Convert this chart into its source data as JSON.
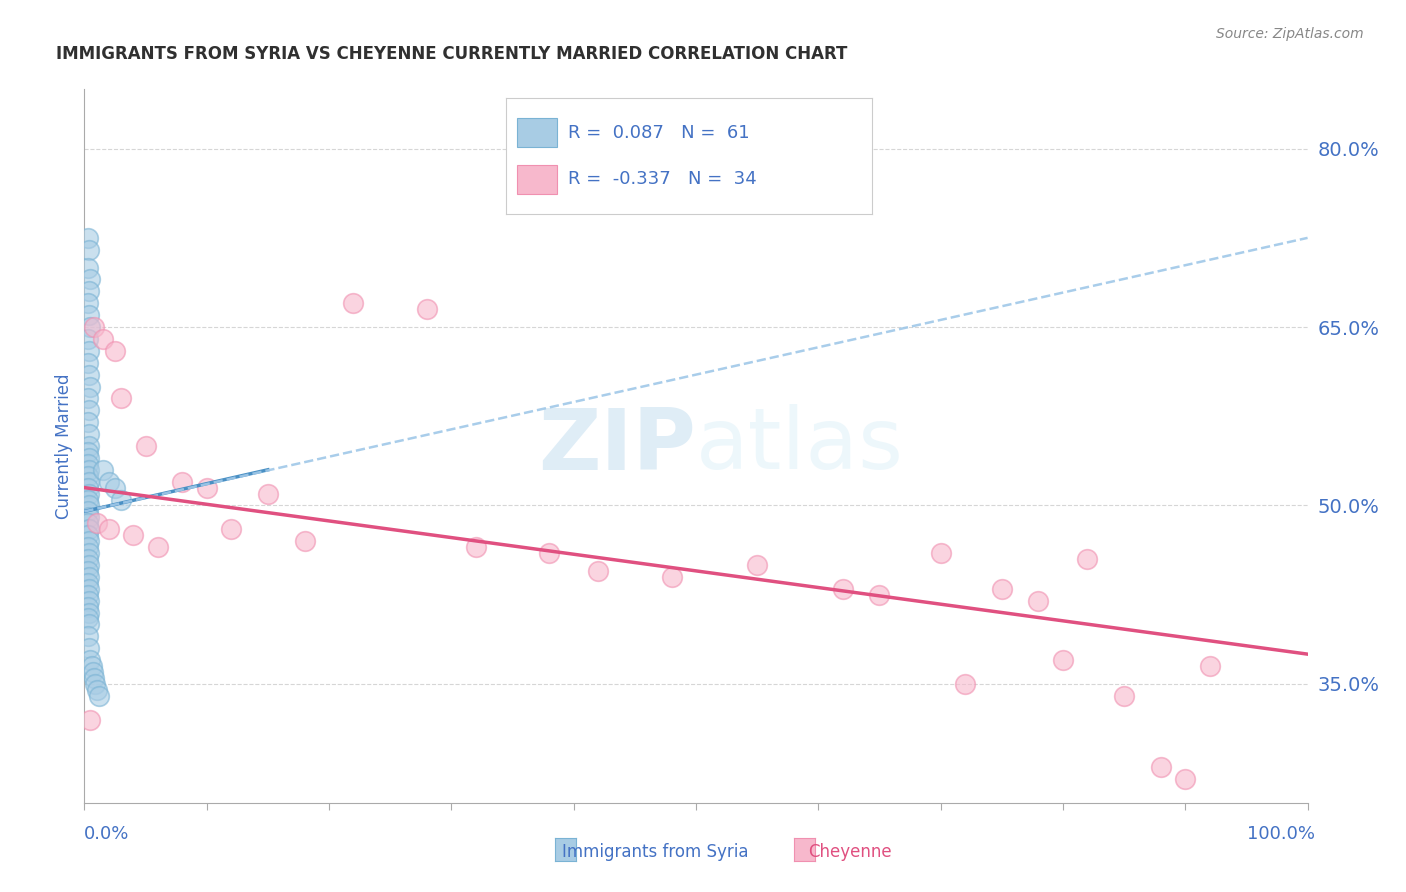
{
  "title": "IMMIGRANTS FROM SYRIA VS CHEYENNE CURRENTLY MARRIED CORRELATION CHART",
  "source": "Source: ZipAtlas.com",
  "xlabel_blue": "Immigrants from Syria",
  "xlabel_pink": "Cheyenne",
  "ylabel": "Currently Married",
  "xlim": [
    0.0,
    100.0
  ],
  "ylim": [
    25.0,
    85.0
  ],
  "yticks": [
    35.0,
    50.0,
    65.0,
    80.0
  ],
  "xticks_major": [
    0,
    10,
    20,
    30,
    40,
    50,
    60,
    70,
    80,
    90,
    100
  ],
  "legend_blue_r": "0.087",
  "legend_blue_n": "61",
  "legend_pink_r": "-0.337",
  "legend_pink_n": "34",
  "blue_color": "#a8cce4",
  "pink_color": "#f7b8cc",
  "blue_edge_color": "#7ab3d4",
  "pink_edge_color": "#f090b0",
  "blue_solid_color": "#4a90c4",
  "pink_solid_color": "#e05080",
  "blue_dashed_color": "#a0c8e8",
  "axis_label_color": "#4472c4",
  "grid_color": "#cccccc",
  "title_color": "#303030",
  "watermark_color": "#d8eef8",
  "blue_scatter_x": [
    0.3,
    0.4,
    0.3,
    0.5,
    0.4,
    0.3,
    0.4,
    0.5,
    0.3,
    0.4,
    0.3,
    0.4,
    0.5,
    0.3,
    0.4,
    0.3,
    0.4,
    0.4,
    0.3,
    0.4,
    0.3,
    0.4,
    0.3,
    0.4,
    0.3,
    0.4,
    0.3,
    0.4,
    0.3,
    0.4,
    0.3,
    0.4,
    0.3,
    0.4,
    0.3,
    0.4,
    0.3,
    0.4,
    0.3,
    0.4,
    0.3,
    0.4,
    0.3,
    0.4,
    0.3,
    0.4,
    0.3,
    0.4,
    0.3,
    0.4,
    1.5,
    2.0,
    2.5,
    3.0,
    0.5,
    0.6,
    0.7,
    0.8,
    0.9,
    1.0,
    1.2
  ],
  "blue_scatter_y": [
    72.5,
    71.5,
    70.0,
    69.0,
    68.0,
    67.0,
    66.0,
    65.0,
    64.0,
    63.0,
    62.0,
    61.0,
    60.0,
    59.0,
    58.0,
    57.0,
    56.0,
    55.0,
    54.5,
    54.0,
    53.5,
    53.0,
    52.5,
    52.0,
    51.5,
    51.0,
    50.5,
    50.0,
    49.5,
    49.0,
    48.5,
    48.0,
    47.5,
    47.0,
    46.5,
    46.0,
    45.5,
    45.0,
    44.5,
    44.0,
    43.5,
    43.0,
    42.5,
    42.0,
    41.5,
    41.0,
    40.5,
    40.0,
    39.0,
    38.0,
    53.0,
    52.0,
    51.5,
    50.5,
    37.0,
    36.5,
    36.0,
    35.5,
    35.0,
    34.5,
    34.0
  ],
  "pink_scatter_x": [
    0.5,
    0.8,
    1.5,
    2.5,
    3.0,
    5.0,
    8.0,
    10.0,
    12.0,
    15.0,
    18.0,
    22.0,
    28.0,
    32.0,
    38.0,
    42.0,
    48.0,
    55.0,
    62.0,
    65.0,
    70.0,
    72.0,
    75.0,
    78.0,
    80.0,
    82.0,
    85.0,
    88.0,
    90.0,
    92.0,
    1.0,
    2.0,
    4.0,
    6.0
  ],
  "pink_scatter_y": [
    32.0,
    65.0,
    64.0,
    63.0,
    59.0,
    55.0,
    52.0,
    51.5,
    48.0,
    51.0,
    47.0,
    67.0,
    66.5,
    46.5,
    46.0,
    44.5,
    44.0,
    45.0,
    43.0,
    42.5,
    46.0,
    35.0,
    43.0,
    42.0,
    37.0,
    45.5,
    34.0,
    28.0,
    27.0,
    36.5,
    48.5,
    48.0,
    47.5,
    46.5
  ],
  "blue_solid_trend_x": [
    0.0,
    15.0
  ],
  "blue_solid_trend_y": [
    49.5,
    53.0
  ],
  "blue_dashed_trend_x": [
    0.0,
    100.0
  ],
  "blue_dashed_trend_y": [
    49.5,
    72.5
  ],
  "pink_trend_x": [
    0.0,
    100.0
  ],
  "pink_trend_y": [
    51.5,
    37.5
  ]
}
